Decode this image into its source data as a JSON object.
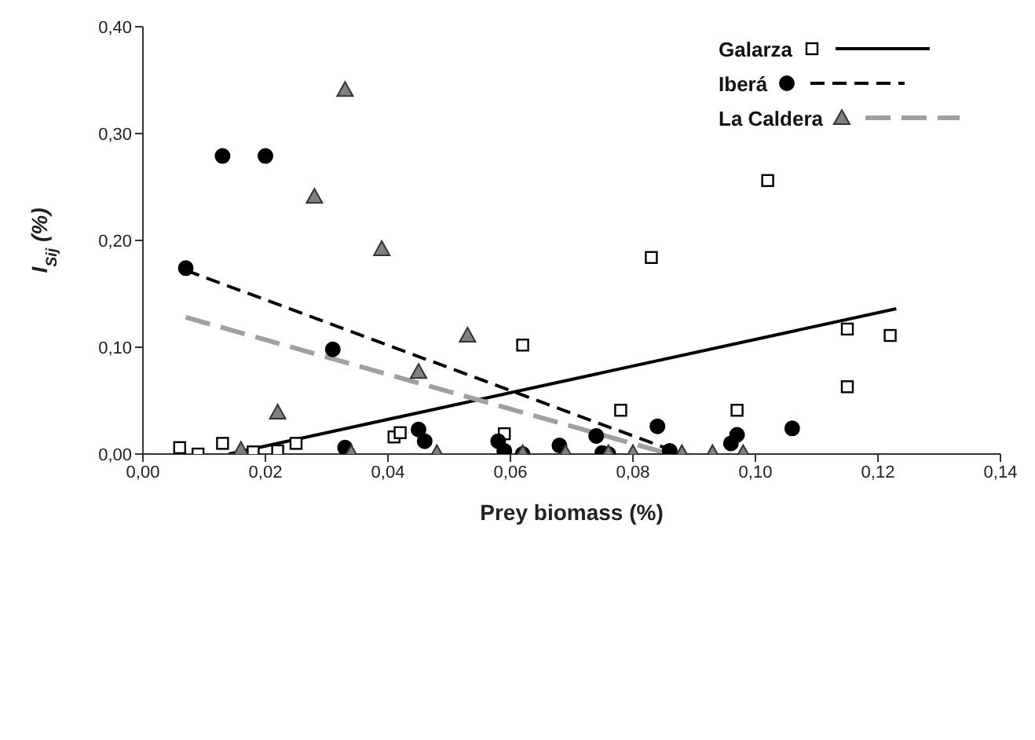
{
  "chart_data": {
    "type": "scatter",
    "xlabel": "Prey biomass (%)",
    "ylabel": "I$_{Sij}$ (%)",
    "xlim": [
      0,
      0.14
    ],
    "ylim": [
      0,
      0.4
    ],
    "xticks": [
      {
        "value": 0,
        "label": "0,00"
      },
      {
        "value": 0.02,
        "label": "0,02"
      },
      {
        "value": 0.04,
        "label": "0,04"
      },
      {
        "value": 0.06,
        "label": "0,06"
      },
      {
        "value": 0.08,
        "label": "0,08"
      },
      {
        "value": 0.1,
        "label": "0,10"
      },
      {
        "value": 0.12,
        "label": "0,12"
      },
      {
        "value": 0.14,
        "label": "0,14"
      }
    ],
    "yticks": [
      {
        "value": 0,
        "label": "0,00"
      },
      {
        "value": 0.1,
        "label": "0,10"
      },
      {
        "value": 0.2,
        "label": "0,20"
      },
      {
        "value": 0.3,
        "label": "0,30"
      },
      {
        "value": 0.4,
        "label": "0,40"
      }
    ],
    "grid": false,
    "legend": "top right",
    "series": [
      {
        "name": "Galarza",
        "marker": "square",
        "color": "#000000",
        "x": [
          0.006,
          0.009,
          0.013,
          0.018,
          0.022,
          0.025,
          0.041,
          0.042,
          0.059,
          0.062,
          0.078,
          0.083,
          0.097,
          0.102,
          0.115,
          0.115,
          0.122
        ],
        "values": [
          0.006,
          0.0,
          0.01,
          0.002,
          0.003,
          0.01,
          0.016,
          0.02,
          0.019,
          0.102,
          0.041,
          0.184,
          0.041,
          0.256,
          0.117,
          0.063,
          0.111
        ]
      },
      {
        "name": "Iberá",
        "marker": "circle",
        "color": "#000000",
        "x": [
          0.007,
          0.013,
          0.02,
          0.031,
          0.033,
          0.045,
          0.046,
          0.058,
          0.059,
          0.062,
          0.068,
          0.074,
          0.075,
          0.076,
          0.084,
          0.086,
          0.096,
          0.097,
          0.106
        ],
        "values": [
          0.174,
          0.279,
          0.279,
          0.098,
          0.006,
          0.023,
          0.012,
          0.012,
          0.003,
          0.0,
          0.008,
          0.017,
          0.001,
          0.0,
          0.026,
          0.003,
          0.01,
          0.018,
          0.024
        ]
      },
      {
        "name": "La Caldera",
        "marker": "triangle",
        "color": "#808080",
        "x": [
          0.016,
          0.022,
          0.028,
          0.033,
          0.034,
          0.039,
          0.045,
          0.048,
          0.053,
          0.062,
          0.069,
          0.076,
          0.08,
          0.088,
          0.093,
          0.098
        ],
        "values": [
          0.004,
          0.039,
          0.241,
          0.341,
          0.001,
          0.192,
          0.077,
          0.001,
          0.111,
          0.001,
          0.001,
          0.001,
          0.001,
          0.001,
          0.001,
          0.001
        ]
      },
      {
        "type": "line",
        "line_style": "solid",
        "color": "#000000",
        "x": [
          0.014,
          0.123
        ],
        "values": [
          0.0,
          0.136
        ]
      },
      {
        "type": "line",
        "line_style": "dashed",
        "color": "#000000",
        "x": [
          0.007,
          0.088
        ],
        "values": [
          0.172,
          0.0
        ]
      },
      {
        "type": "line",
        "line_style": "dashed",
        "color": "#a0a0a0",
        "x": [
          0.007,
          0.086
        ],
        "values": [
          0.128,
          0.0
        ]
      }
    ]
  }
}
